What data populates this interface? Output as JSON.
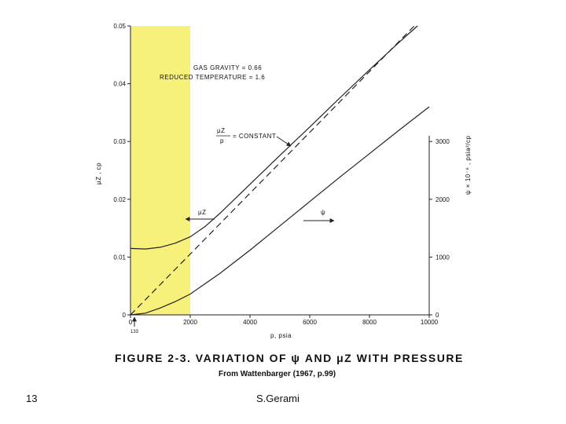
{
  "slide": {
    "page_number": "13",
    "author": "S.Gerami"
  },
  "colors": {
    "highlight": "#f7f07a",
    "line": "#222222"
  },
  "chart_data": {
    "type": "line",
    "caption": "FIGURE 2-3.  VARIATION OF  ψ  AND  μZ  WITH  PRESSURE",
    "source": "From Wattenbarger (1967, p.99)",
    "xlabel": "p, psia",
    "ylabel_left": "μZ , cp",
    "ylabel_right": "ψ × 10⁻⁶ , psia²/cp",
    "xlim": [
      0,
      10000
    ],
    "ylim_left": [
      0,
      0.05
    ],
    "ylim_right": [
      0,
      5000
    ],
    "x_ticks": [
      "0",
      "2000",
      "4000",
      "6000",
      "8000",
      "10000"
    ],
    "y_ticks_left": [
      "0",
      "0.01",
      "0.02",
      "0.03",
      "0.04",
      "0.05"
    ],
    "y_ticks_right": [
      "0",
      "1000",
      "2000",
      "3000"
    ],
    "annotations": {
      "gas_gravity": "GAS GRAVITY = 0.66",
      "reduced_temp": "REDUCED TEMPERATURE = 1.6",
      "constant_num": "μZ",
      "constant_den": "p",
      "constant_rest": "= CONSTANT",
      "mu_arrow": "μZ",
      "psi_arrow": "ψ",
      "marker": "133"
    },
    "highlight_range": [
      0,
      2000
    ],
    "series": [
      {
        "name": "μZ",
        "axis": "left",
        "style": "solid",
        "x": [
          0,
          500,
          1000,
          1500,
          2000,
          2500,
          3000,
          4000,
          5000,
          6000,
          7000,
          8000,
          9000,
          10000
        ],
        "y": [
          0.0115,
          0.0114,
          0.0117,
          0.0124,
          0.0135,
          0.0153,
          0.0176,
          0.0226,
          0.0276,
          0.0325,
          0.0375,
          0.0424,
          0.0472,
          0.0518
        ]
      },
      {
        "name": "μZ/p = CONSTANT",
        "axis": "left",
        "style": "dashed",
        "x": [
          0,
          9500
        ],
        "y": [
          0,
          0.05
        ]
      },
      {
        "name": "ψ",
        "axis": "right",
        "style": "solid",
        "x": [
          0,
          500,
          1000,
          1500,
          2000,
          3000,
          4000,
          5000,
          6000,
          7000,
          8000,
          9000,
          10000
        ],
        "y": [
          0,
          30,
          120,
          230,
          360,
          720,
          1120,
          1540,
          1960,
          2380,
          2790,
          3200,
          3600
        ]
      }
    ]
  }
}
